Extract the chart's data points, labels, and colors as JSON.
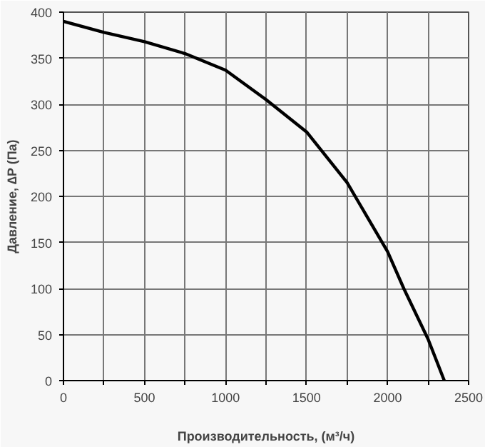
{
  "chart_data": {
    "type": "line",
    "xlabel": "Производительность, (м³/ч)",
    "ylabel": "Давление, ∆P (Па)",
    "x": [
      0,
      250,
      500,
      750,
      1000,
      1250,
      1500,
      1750,
      2000,
      2100,
      2250,
      2350
    ],
    "series": [
      {
        "color": "#000000",
        "values": [
          390,
          378,
          368,
          355,
          337,
          305,
          270,
          215,
          140,
          100,
          45,
          0
        ]
      }
    ],
    "xlim": [
      0,
      2500
    ],
    "ylim": [
      0,
      400
    ],
    "xticks": [
      0,
      {
        "value": 250,
        "label": null
      },
      500,
      {
        "value": 750,
        "label": null
      },
      1000,
      {
        "value": 1250,
        "label": null
      },
      1500,
      {
        "value": 1750,
        "label": null
      },
      2000,
      {
        "value": 2250,
        "label": null
      },
      2500
    ],
    "yticks": [
      0,
      50,
      100,
      150,
      200,
      250,
      300,
      350,
      400
    ],
    "grid": true,
    "marker": "none",
    "line_style": "solid"
  }
}
